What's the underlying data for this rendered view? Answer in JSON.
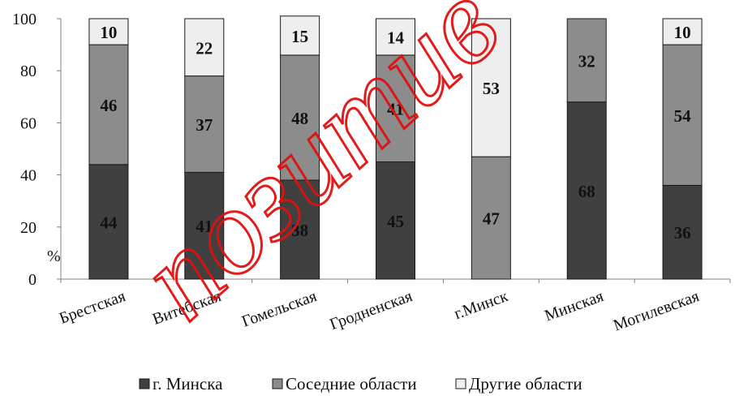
{
  "chart_data": {
    "type": "bar",
    "stacked": true,
    "categories": [
      "Брестская",
      "Витебская",
      "Гомельская",
      "Гродненская",
      "г.Минск",
      "Минская",
      "Могилевская"
    ],
    "series": [
      {
        "name": "г. Минска",
        "color": "#404040",
        "values": [
          44,
          41,
          38,
          45,
          0,
          68,
          36
        ]
      },
      {
        "name": "Соседние области",
        "color": "#8c8c8c",
        "values": [
          46,
          37,
          48,
          41,
          47,
          32,
          54
        ]
      },
      {
        "name": "Другие области",
        "color": "#eeeeee",
        "values": [
          10,
          22,
          15,
          14,
          53,
          0,
          10
        ]
      }
    ],
    "ylim": [
      0,
      100
    ],
    "yticks": [
      0,
      20,
      40,
      60,
      80,
      100
    ],
    "ylabel": "%",
    "grid": false,
    "legend_position": "bottom"
  },
  "watermark": {
    "text": "позитив",
    "color": "#e01010"
  }
}
